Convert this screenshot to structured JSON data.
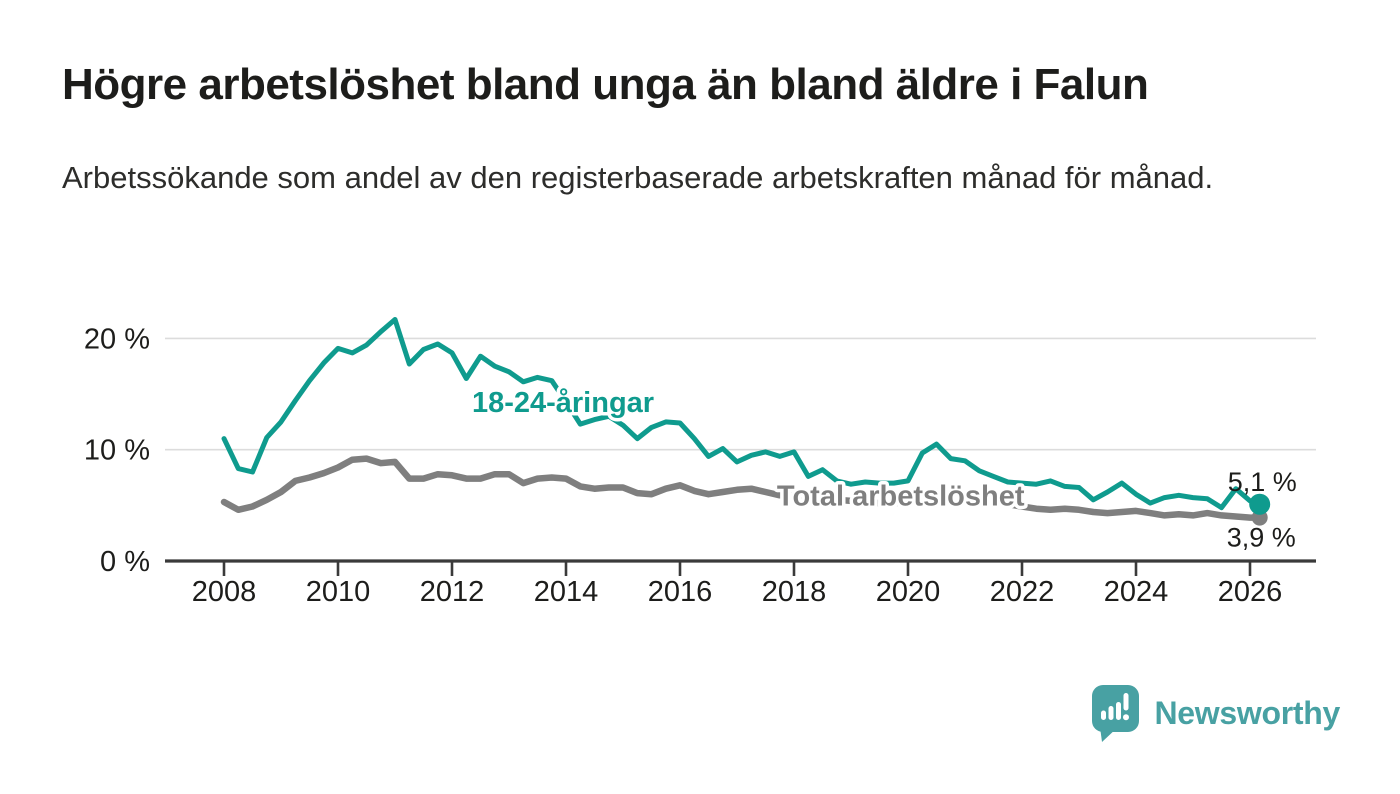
{
  "page": {
    "title": "Högre arbetslöshet bland unga än bland äldre i Falun",
    "subtitle": "Arbetssökande som andel av den registerbaserade arbetskraften månad för månad."
  },
  "footer": {
    "brand": "Newsworthy",
    "logo_icon": "speech-bubble-bar-chart-icon"
  },
  "colors": {
    "young_series": "#0f9b8e",
    "total_series": "#7f7f7f",
    "grid": "#dcdcdc",
    "axis": "#3a3a3a",
    "text": "#1d1d1b",
    "brand": "#48a1a3"
  },
  "chart_data": {
    "type": "line",
    "title": "",
    "xlabel": "",
    "ylabel": "",
    "x_unit": "decimal_year",
    "xlim": [
      2007.0,
      2027.2
    ],
    "ylim": [
      0,
      22.5
    ],
    "grid": "horizontal",
    "legend_position": "inline-labels",
    "y_ticks": [
      {
        "value": 0,
        "label": "0 %"
      },
      {
        "value": 10,
        "label": "10 %"
      },
      {
        "value": 20,
        "label": "20 %"
      }
    ],
    "x_ticks": [
      {
        "value": 2008,
        "label": "2008"
      },
      {
        "value": 2010,
        "label": "2010"
      },
      {
        "value": 2012,
        "label": "2012"
      },
      {
        "value": 2014,
        "label": "2014"
      },
      {
        "value": 2016,
        "label": "2016"
      },
      {
        "value": 2018,
        "label": "2018"
      },
      {
        "value": 2020,
        "label": "2020"
      },
      {
        "value": 2022,
        "label": "2022"
      },
      {
        "value": 2024,
        "label": "2024"
      },
      {
        "value": 2026,
        "label": "2026"
      }
    ],
    "x": [
      2008,
      2008.25,
      2008.5,
      2008.75,
      2009,
      2009.25,
      2009.5,
      2009.75,
      2010,
      2010.25,
      2010.5,
      2010.75,
      2011,
      2011.25,
      2011.5,
      2011.75,
      2012,
      2012.25,
      2012.5,
      2012.75,
      2013,
      2013.25,
      2013.5,
      2013.75,
      2014,
      2014.25,
      2014.5,
      2014.75,
      2015,
      2015.25,
      2015.5,
      2015.75,
      2016,
      2016.25,
      2016.5,
      2016.75,
      2017,
      2017.25,
      2017.5,
      2017.75,
      2018,
      2018.25,
      2018.5,
      2018.75,
      2019,
      2019.25,
      2019.5,
      2019.75,
      2020,
      2020.25,
      2020.5,
      2020.75,
      2021,
      2021.25,
      2021.5,
      2021.75,
      2022,
      2022.25,
      2022.5,
      2022.75,
      2023,
      2023.25,
      2023.5,
      2023.75,
      2024,
      2024.25,
      2024.5,
      2024.75,
      2025,
      2025.25,
      2025.5,
      2025.75,
      2026,
      2026.17
    ],
    "series": [
      {
        "name": "Total arbetslöshet",
        "color": "#7f7f7f",
        "stroke_width": 6.5,
        "end_dot_radius": 8,
        "label": {
          "text": "Total arbetslöshet",
          "x": 2017.7,
          "y": 5.0
        },
        "end_label": "3,9 %",
        "end_value": 3.9,
        "end_label_offset": {
          "dx": -33,
          "dy": 29
        },
        "values": [
          5.3,
          4.6,
          4.9,
          5.5,
          6.2,
          7.2,
          7.5,
          7.9,
          8.4,
          9.1,
          9.2,
          8.8,
          8.9,
          7.4,
          7.4,
          7.8,
          7.7,
          7.4,
          7.4,
          7.8,
          7.8,
          7.0,
          7.4,
          7.5,
          7.4,
          6.7,
          6.5,
          6.6,
          6.6,
          6.1,
          6.0,
          6.5,
          6.8,
          6.3,
          6.0,
          6.2,
          6.4,
          6.5,
          6.2,
          5.9,
          5.9,
          5.7,
          5.6,
          5.5,
          5.4,
          5.3,
          5.2,
          5.2,
          5.3,
          5.8,
          6.2,
          6.1,
          5.9,
          5.6,
          5.3,
          5.1,
          4.9,
          4.7,
          4.6,
          4.7,
          4.6,
          4.4,
          4.3,
          4.4,
          4.5,
          4.3,
          4.1,
          4.2,
          4.1,
          4.3,
          4.1,
          4.0,
          3.9,
          3.9
        ]
      },
      {
        "name": "18-24-åringar",
        "color": "#0f9b8e",
        "stroke_width": 5,
        "end_dot_radius": 10.5,
        "label": {
          "text": "18-24-åringar",
          "x": 2012.35,
          "y": 13.4
        },
        "end_label": "5,1 %",
        "end_value": 5.1,
        "end_label_offset": {
          "dx": -32,
          "dy": -13
        },
        "values": [
          11.0,
          8.3,
          8.0,
          11.1,
          12.5,
          14.4,
          16.2,
          17.8,
          19.1,
          18.7,
          19.4,
          20.6,
          21.7,
          17.7,
          19.0,
          19.5,
          18.7,
          16.4,
          18.4,
          17.5,
          17.0,
          16.1,
          16.5,
          16.2,
          14.3,
          12.3,
          12.7,
          13.0,
          12.2,
          11.0,
          12.0,
          12.5,
          12.4,
          11.0,
          9.4,
          10.1,
          8.9,
          9.5,
          9.8,
          9.4,
          9.8,
          7.6,
          8.2,
          7.2,
          6.9,
          7.1,
          7.0,
          7.0,
          7.2,
          9.7,
          10.5,
          9.2,
          9.0,
          8.1,
          7.6,
          7.1,
          7.0,
          6.9,
          7.2,
          6.7,
          6.6,
          5.5,
          6.2,
          7.0,
          6.0,
          5.2,
          5.7,
          5.9,
          5.7,
          5.6,
          4.8,
          6.5,
          5.4,
          5.1
        ]
      }
    ]
  }
}
